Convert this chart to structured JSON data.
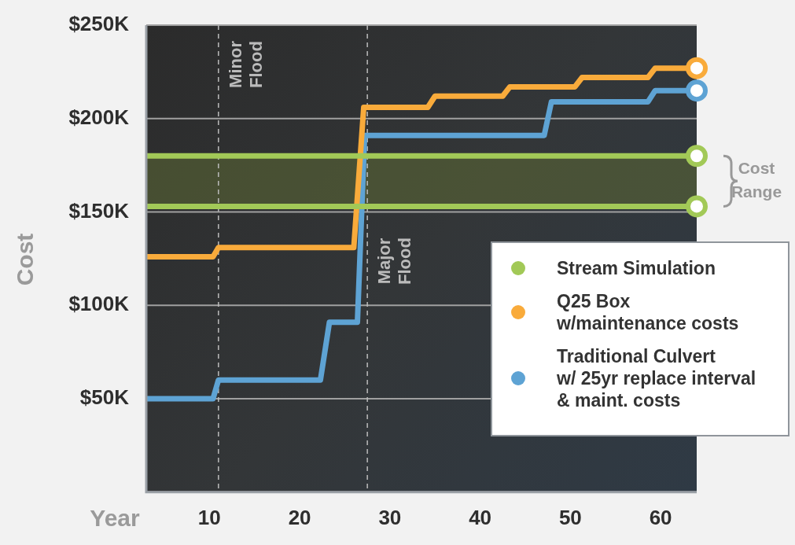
{
  "chart_data": {
    "type": "area",
    "xlabel": "Year",
    "ylabel": "Cost",
    "xlim": [
      3,
      64
    ],
    "xticks": [
      10,
      20,
      30,
      40,
      50,
      60
    ],
    "ylim": [
      0,
      250000
    ],
    "yticks": [
      {
        "value": 0,
        "label": null
      },
      {
        "value": 50000,
        "label": "$50K"
      },
      {
        "value": 100000,
        "label": "$100K"
      },
      {
        "value": 150000,
        "label": "$150K"
      },
      {
        "value": 200000,
        "label": "$200K"
      },
      {
        "value": 250000,
        "label": "$250K"
      }
    ],
    "grid": "y",
    "legend": "bottom right",
    "series": [
      {
        "name": "Stream Simulation",
        "type": "line",
        "color": "#a2c957",
        "x": [
          3,
          64
        ],
        "values": [
          180000,
          180000
        ]
      },
      {
        "type": "line",
        "color": "#a2c957",
        "x": [
          3,
          64
        ],
        "values": [
          153000,
          153000
        ]
      },
      {
        "name": "Q25 Box\nw/maintenance costs",
        "color": "#f9ab3b",
        "x": [
          3,
          10.4,
          11,
          26,
          27.1,
          34.2,
          35,
          42.5,
          43.3,
          50.5,
          51.3,
          58.6,
          59.4,
          64
        ],
        "values": [
          126000,
          126000,
          131000,
          131000,
          206000,
          206000,
          212000,
          212000,
          217000,
          217000,
          222000,
          222000,
          227000,
          227000
        ]
      },
      {
        "name": "Traditional Culvert\nw/ 25yr replace interval\n& maint. costs",
        "color": "#5ea3d4",
        "x": [
          3,
          10.4,
          11,
          22.3,
          23.3,
          26.4,
          27.2,
          47.1,
          47.9,
          58.6,
          59.4,
          64
        ],
        "values": [
          50000,
          50000,
          60000,
          60000,
          91000,
          91000,
          191000,
          191000,
          209000,
          209000,
          215000,
          215000
        ]
      }
    ],
    "ref_lines": [
      {
        "axis": "x",
        "value": 11,
        "label": "Minor Flood",
        "color": "#bbbbbb",
        "line_style": "dashed"
      },
      {
        "axis": "x",
        "value": 27.5,
        "label": "Major Flood",
        "color": "#bbbbbb",
        "line_style": "dashed"
      }
    ],
    "bands": [
      {
        "axis": "y",
        "from": 153000,
        "to": 180000,
        "label": "Cost Range",
        "color": "#5c6a35"
      }
    ]
  }
}
